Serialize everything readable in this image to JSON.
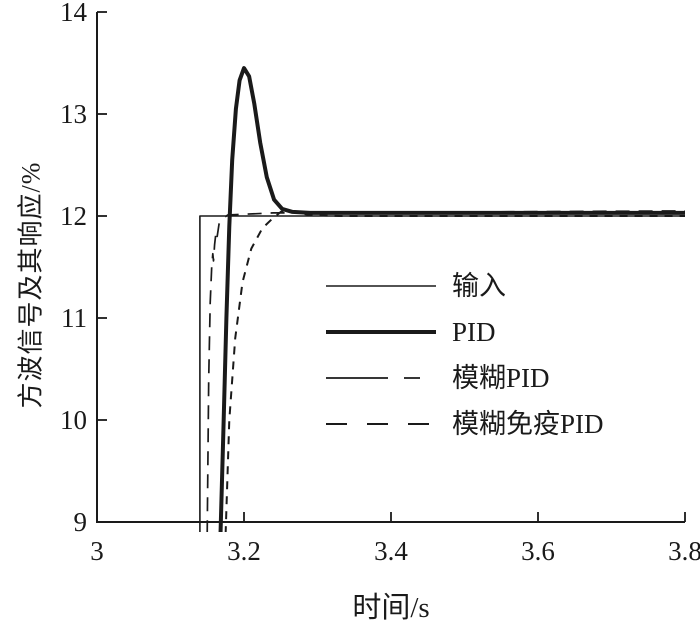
{
  "figure": {
    "background": "#ffffff",
    "ink_color": "#1a1a1a"
  },
  "chart_data": {
    "type": "line",
    "title": "",
    "xlabel": "时间/s",
    "ylabel": "方波信号及其响应/%",
    "xlim": [
      3,
      3.8
    ],
    "ylim": [
      9,
      14
    ],
    "x_ticks": [
      "3",
      "3.2",
      "3.4",
      "3.6",
      "3.8"
    ],
    "x_tick_values": [
      3,
      3.2,
      3.4,
      3.6,
      3.8
    ],
    "y_ticks": [
      "9",
      "10",
      "11",
      "12",
      "13",
      "14"
    ],
    "y_tick_values": [
      9,
      10,
      11,
      12,
      13,
      14
    ],
    "grid": false,
    "frame": "L-shaped axes, ticks pointing inward",
    "legend_position": "inside center-right, no border",
    "description": "Square-wave step responses: input steps from below 9 up to 12 at t=3.14 s; PID overshoots to ~13.45 then settles at ~12.0; fuzzy PID and fuzzy-immune PID rise quickly with little overshoot.",
    "series": [
      {
        "name": "输入",
        "style": "solid",
        "stroke_width": 1.6,
        "dash": null,
        "legend_dash": null,
        "points": [
          [
            3.14,
            8.88
          ],
          [
            3.14,
            12.0
          ],
          [
            3.8,
            12.0
          ]
        ]
      },
      {
        "name": "PID",
        "style": "solid-thick",
        "stroke_width": 4,
        "dash": null,
        "legend_dash": null,
        "points": [
          [
            3.168,
            8.88
          ],
          [
            3.172,
            9.9
          ],
          [
            3.176,
            11.0
          ],
          [
            3.18,
            11.9
          ],
          [
            3.184,
            12.55
          ],
          [
            3.189,
            13.05
          ],
          [
            3.194,
            13.33
          ],
          [
            3.2,
            13.45
          ],
          [
            3.207,
            13.37
          ],
          [
            3.214,
            13.1
          ],
          [
            3.222,
            12.72
          ],
          [
            3.231,
            12.38
          ],
          [
            3.241,
            12.16
          ],
          [
            3.252,
            12.07
          ],
          [
            3.266,
            12.04
          ],
          [
            3.29,
            12.03
          ],
          [
            3.8,
            12.03
          ]
        ]
      },
      {
        "name": "模糊PID",
        "style": "long-dash",
        "stroke_width": 1.7,
        "dash": "14 9",
        "legend_dash": "62 16 16 200",
        "points": [
          [
            3.15,
            8.88
          ],
          [
            3.152,
            10.4
          ],
          [
            3.154,
            11.15
          ],
          [
            3.156,
            11.5
          ],
          [
            3.1575,
            11.63
          ],
          [
            3.1585,
            11.56
          ],
          [
            3.16,
            11.72
          ],
          [
            3.162,
            11.85
          ],
          [
            3.1635,
            11.8
          ],
          [
            3.166,
            11.92
          ],
          [
            3.17,
            11.97
          ],
          [
            3.178,
            12.01
          ],
          [
            3.24,
            12.03
          ],
          [
            3.8,
            12.05
          ]
        ]
      },
      {
        "name": "模糊免疫PID",
        "style": "short-dash",
        "stroke_width": 2,
        "dash": "8 7",
        "legend_dash": "21 20",
        "points": [
          [
            3.175,
            8.88
          ],
          [
            3.18,
            10.0
          ],
          [
            3.188,
            10.8
          ],
          [
            3.198,
            11.35
          ],
          [
            3.21,
            11.68
          ],
          [
            3.225,
            11.88
          ],
          [
            3.238,
            11.97
          ],
          [
            3.25,
            12.04
          ],
          [
            3.26,
            12.06
          ],
          [
            3.272,
            12.03
          ],
          [
            3.29,
            12.01
          ],
          [
            3.33,
            12.0
          ],
          [
            3.8,
            12.0
          ]
        ]
      }
    ]
  }
}
